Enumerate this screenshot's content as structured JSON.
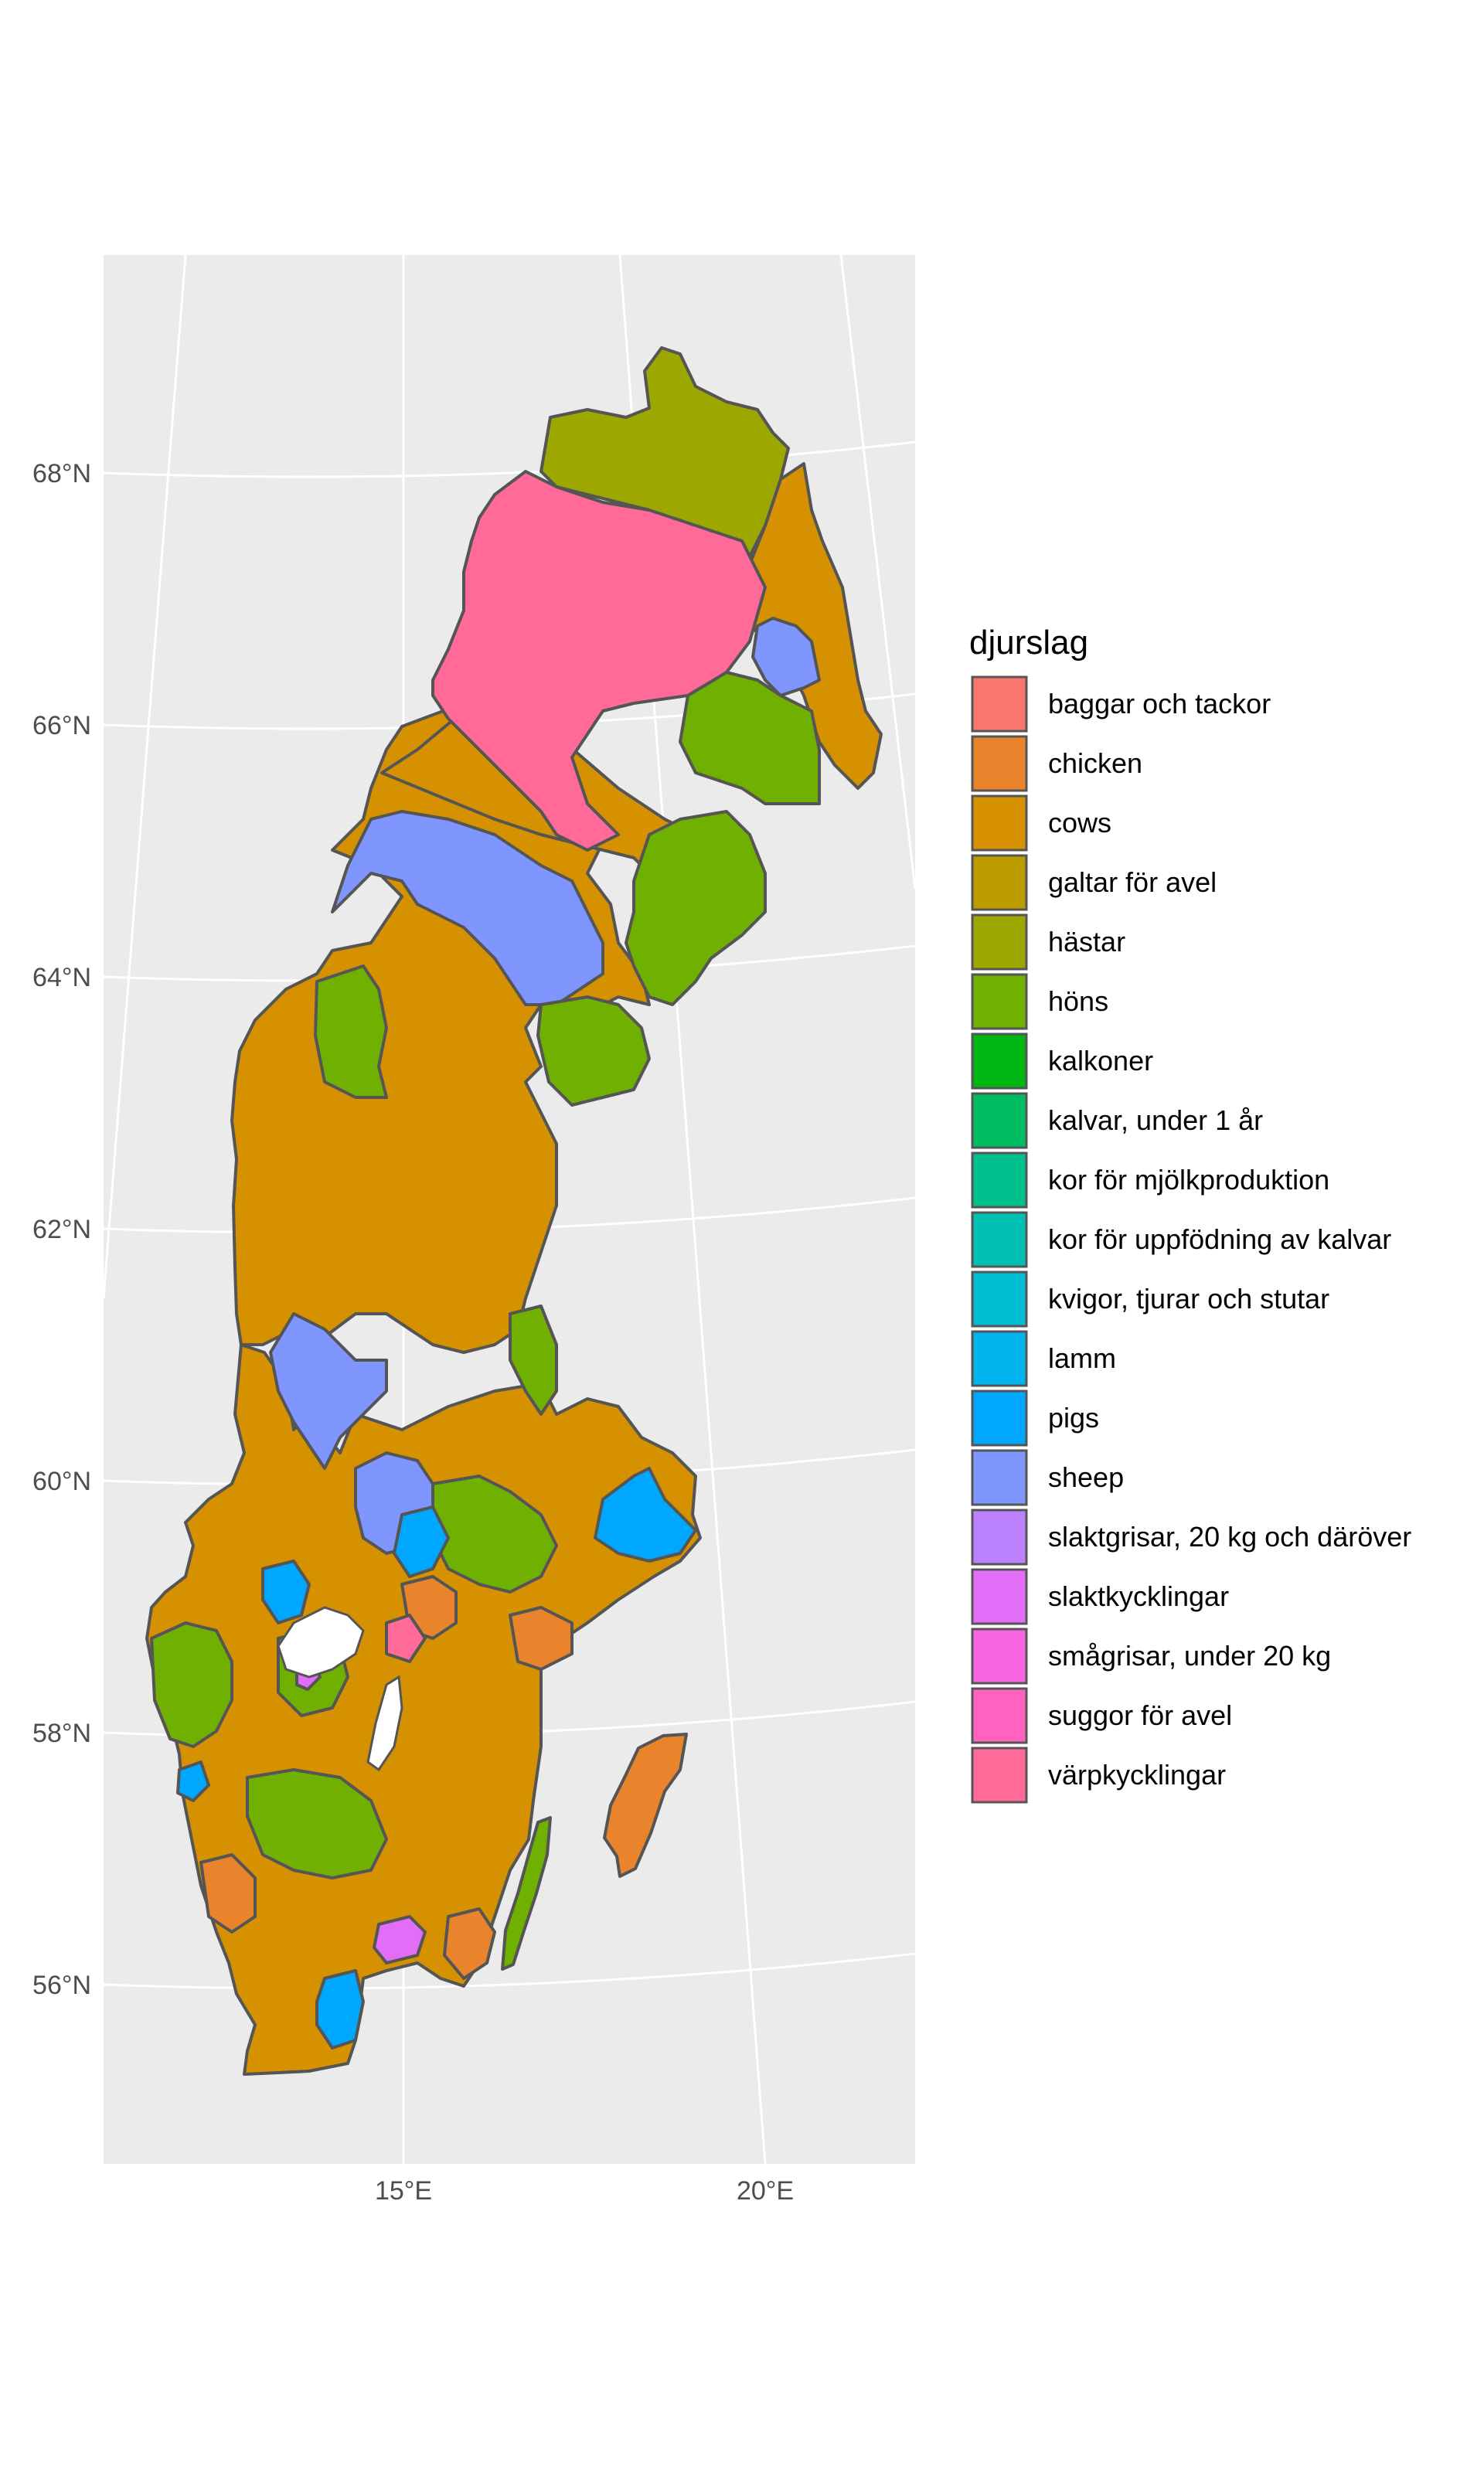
{
  "legend": {
    "title": "djurslag",
    "items": [
      {
        "label": "baggar och tackor",
        "color": "#F8766D"
      },
      {
        "label": "chicken",
        "color": "#E9842C"
      },
      {
        "label": "cows",
        "color": "#D69100"
      },
      {
        "label": "galtar för avel",
        "color": "#BC9D00"
      },
      {
        "label": "hästar",
        "color": "#9CA700"
      },
      {
        "label": "höns",
        "color": "#6FB000"
      },
      {
        "label": "kalkoner",
        "color": "#00B813"
      },
      {
        "label": "kalvar, under 1 år",
        "color": "#00BD61"
      },
      {
        "label": "kor för mjölkproduktion",
        "color": "#00C08E"
      },
      {
        "label": "kor för uppfödning av kalvar",
        "color": "#00C0B4"
      },
      {
        "label": "kvigor, tjurar och stutar",
        "color": "#00BDD4"
      },
      {
        "label": "lamm",
        "color": "#00B5EE"
      },
      {
        "label": "pigs",
        "color": "#00A7FF"
      },
      {
        "label": "sheep",
        "color": "#7F96FF"
      },
      {
        "label": "slaktgrisar, 20 kg och däröver",
        "color": "#BC81FF"
      },
      {
        "label": "slaktkycklingar",
        "color": "#E26EF7"
      },
      {
        "label": "smågrisar, under 20 kg",
        "color": "#F863DF"
      },
      {
        "label": "suggor för avel",
        "color": "#FF62BF"
      },
      {
        "label": "värpkycklingar",
        "color": "#FF6A98"
      }
    ]
  },
  "axes": {
    "latitude_labels": [
      "68°N",
      "66°N",
      "64°N",
      "62°N",
      "60°N",
      "58°N",
      "56°N"
    ],
    "longitude_labels": [
      "15°E",
      "20°E"
    ]
  },
  "colors": {
    "panel_background": "#EBEBEB",
    "grid": "#FFFFFF",
    "border": "#555555"
  }
}
